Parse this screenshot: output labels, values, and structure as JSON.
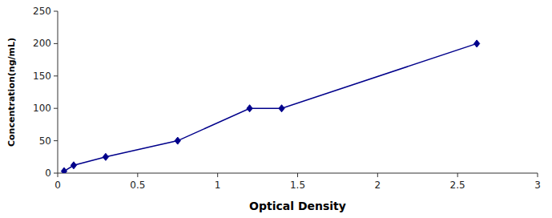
{
  "chart_data": {
    "type": "line",
    "x": [
      0.04,
      0.1,
      0.3,
      0.75,
      1.2,
      1.4,
      2.62
    ],
    "values": [
      3,
      12,
      25,
      50,
      100,
      100,
      200
    ],
    "color": "#00008B",
    "marker": "diamond",
    "line_style": "solid",
    "xlabel": "Optical Density",
    "ylabel": "Concentration(ng/mL)",
    "xlim": [
      0,
      3
    ],
    "ylim": [
      0,
      250
    ],
    "xticks": [
      0,
      0.5,
      1,
      1.5,
      2,
      2.5,
      3
    ],
    "yticks": [
      0,
      50,
      100,
      150,
      200,
      250
    ],
    "grid": false
  }
}
